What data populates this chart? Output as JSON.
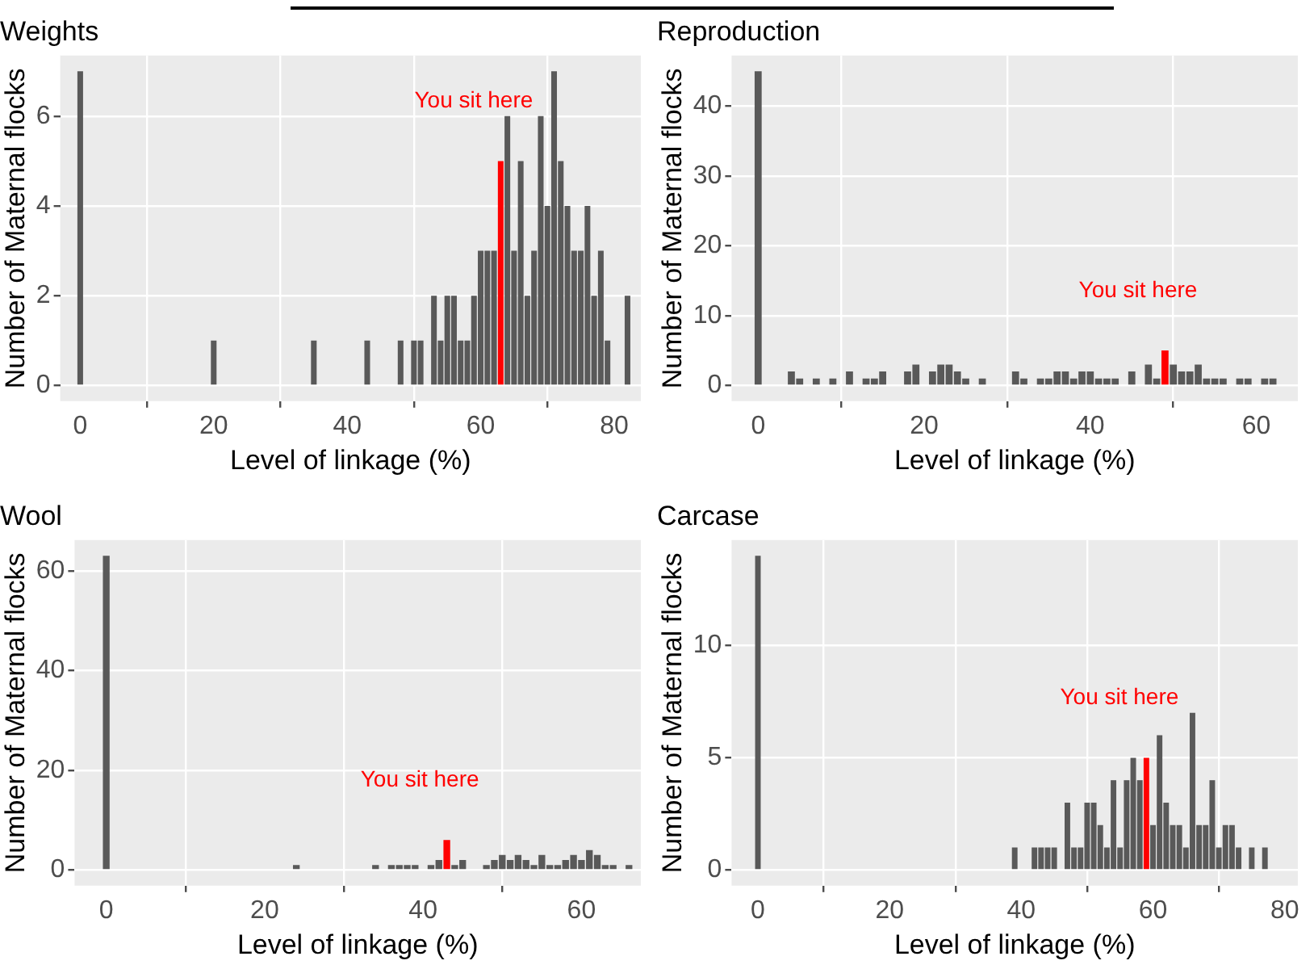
{
  "chart_data": [
    {
      "type": "histogram",
      "title": "Weights",
      "xlabel": "Level of linkage (%)",
      "ylabel": "Number of Maternal flocks",
      "grid": true,
      "bins": [
        -0.5,
        0.5,
        1.5,
        2.5,
        3.5,
        4.5,
        5.5,
        6.5,
        7.5,
        8.5,
        9.5,
        10.5,
        11.5,
        12.5,
        13.5,
        14.5,
        15.5,
        16.5,
        17.5,
        18.5,
        19.5,
        20.5,
        21.5,
        22.5,
        23.5,
        24.5,
        25.5,
        26.5,
        27.5,
        28.5,
        29.5,
        30.5,
        31.5,
        32.5,
        33.5,
        34.5,
        35.5,
        36.5,
        37.5,
        38.5,
        39.5,
        40.5,
        41.5,
        42.5,
        43.5,
        44.5,
        45.5,
        46.5,
        47.5,
        48.5,
        49.5,
        50.5,
        51.5,
        52.5,
        53.5,
        54.5,
        55.5,
        56.5,
        57.5,
        58.5,
        59.5,
        60.5,
        61.5,
        62.5,
        63.5,
        64.5,
        65.5,
        66.5,
        67.5,
        68.5,
        69.5,
        70.5,
        71.5,
        72.5,
        73.5,
        74.5,
        75.5,
        76.5,
        77.5,
        78.5,
        79.5,
        80.5,
        81.5,
        82.5
      ],
      "values": [
        7,
        0,
        0,
        0,
        0,
        0,
        0,
        0,
        0,
        0,
        0,
        0,
        0,
        0,
        0,
        0,
        0,
        0,
        0,
        0,
        1,
        0,
        0,
        0,
        0,
        0,
        0,
        0,
        0,
        0,
        0,
        0,
        0,
        0,
        0,
        1,
        0,
        0,
        0,
        0,
        0,
        0,
        0,
        1,
        0,
        0,
        0,
        0,
        1,
        0,
        1,
        1,
        0,
        2,
        1,
        2,
        2,
        1,
        1,
        2,
        3,
        3,
        3,
        5,
        6,
        3,
        5,
        2,
        3,
        6,
        4,
        7,
        5,
        4,
        3,
        3,
        4,
        2,
        3,
        1,
        0,
        0,
        2
      ],
      "colors": [
        "#595959",
        "#595959",
        "#595959",
        "#595959",
        "#595959",
        "#595959",
        "#595959",
        "#595959",
        "#595959",
        "#595959",
        "#595959",
        "#595959",
        "#595959",
        "#595959",
        "#595959",
        "#595959",
        "#595959",
        "#595959",
        "#595959",
        "#595959",
        "#595959",
        "#595959",
        "#595959",
        "#595959",
        "#595959",
        "#595959",
        "#595959",
        "#595959",
        "#595959",
        "#595959",
        "#595959",
        "#595959",
        "#595959",
        "#595959",
        "#595959",
        "#595959",
        "#595959",
        "#595959",
        "#595959",
        "#595959",
        "#595959",
        "#595959",
        "#595959",
        "#595959",
        "#595959",
        "#595959",
        "#595959",
        "#595959",
        "#595959",
        "#595959",
        "#595959",
        "#595959",
        "#595959",
        "#595959",
        "#595959",
        "#595959",
        "#595959",
        "#595959",
        "#595959",
        "#595959",
        "#595959",
        "#595959",
        "#595959",
        "#ff0000",
        "#595959",
        "#595959",
        "#595959",
        "#595959",
        "#595959",
        "#595959",
        "#595959",
        "#595959",
        "#595959",
        "#595959",
        "#595959",
        "#595959",
        "#595959",
        "#595959",
        "#595959",
        "#595959",
        "#595959",
        "#595959",
        "#595959"
      ],
      "xlim": [
        -3,
        84
      ],
      "xticks": [
        0,
        20,
        40,
        60,
        80
      ],
      "ylim": [
        -0.35,
        7.35
      ],
      "yticks": [
        0,
        2,
        4,
        6
      ],
      "annotations": [
        {
          "text": "You sit here",
          "x": 63,
          "y": 5
        }
      ]
    },
    {
      "type": "histogram",
      "title": "Reproduction",
      "xlabel": "Level of linkage (%)",
      "ylabel": "Number of Maternal flocks",
      "grid": true,
      "bins": [
        -0.5,
        0.5,
        1.5,
        2.5,
        3.5,
        4.5,
        5.5,
        6.5,
        7.5,
        8.5,
        9.5,
        10.5,
        11.5,
        12.5,
        13.5,
        14.5,
        15.5,
        16.5,
        17.5,
        18.5,
        19.5,
        20.5,
        21.5,
        22.5,
        23.5,
        24.5,
        25.5,
        26.5,
        27.5,
        28.5,
        29.5,
        30.5,
        31.5,
        32.5,
        33.5,
        34.5,
        35.5,
        36.5,
        37.5,
        38.5,
        39.5,
        40.5,
        41.5,
        42.5,
        43.5,
        44.5,
        45.5,
        46.5,
        47.5,
        48.5,
        49.5,
        50.5,
        51.5,
        52.5,
        53.5,
        54.5,
        55.5,
        56.5,
        57.5,
        58.5,
        59.5,
        60.5,
        61.5,
        62.5
      ],
      "values": [
        45,
        0,
        0,
        0,
        2,
        1,
        0,
        1,
        0,
        1,
        0,
        2,
        0,
        1,
        1,
        2,
        0,
        0,
        2,
        3,
        0,
        2,
        3,
        3,
        2,
        1,
        0,
        1,
        0,
        0,
        0,
        2,
        1,
        0,
        1,
        1,
        2,
        2,
        1,
        2,
        2,
        1,
        1,
        1,
        0,
        2,
        0,
        3,
        1,
        5,
        3,
        2,
        2,
        3,
        1,
        1,
        1,
        0,
        1,
        1,
        0,
        1,
        1
      ],
      "colors": [
        "#595959",
        "#595959",
        "#595959",
        "#595959",
        "#595959",
        "#595959",
        "#595959",
        "#595959",
        "#595959",
        "#595959",
        "#595959",
        "#595959",
        "#595959",
        "#595959",
        "#595959",
        "#595959",
        "#595959",
        "#595959",
        "#595959",
        "#595959",
        "#595959",
        "#595959",
        "#595959",
        "#595959",
        "#595959",
        "#595959",
        "#595959",
        "#595959",
        "#595959",
        "#595959",
        "#595959",
        "#595959",
        "#595959",
        "#595959",
        "#595959",
        "#595959",
        "#595959",
        "#595959",
        "#595959",
        "#595959",
        "#595959",
        "#595959",
        "#595959",
        "#595959",
        "#595959",
        "#595959",
        "#595959",
        "#595959",
        "#595959",
        "#ff0000",
        "#595959",
        "#595959",
        "#595959",
        "#595959",
        "#595959",
        "#595959",
        "#595959",
        "#595959",
        "#595959",
        "#595959",
        "#595959",
        "#595959",
        "#595959"
      ],
      "xlim": [
        -3.2,
        65
      ],
      "xticks": [
        0,
        20,
        40,
        60
      ],
      "ylim": [
        -2.25,
        47.25
      ],
      "yticks": [
        0,
        10,
        20,
        30,
        40
      ],
      "annotations": [
        {
          "text": "You sit here",
          "x": 49,
          "y": 5
        }
      ]
    },
    {
      "type": "histogram",
      "title": "Wool",
      "xlabel": "Level of linkage (%)",
      "ylabel": "Number of Maternal flocks",
      "grid": true,
      "bins": [
        -0.5,
        0.5,
        1.5,
        2.5,
        3.5,
        4.5,
        5.5,
        6.5,
        7.5,
        8.5,
        9.5,
        10.5,
        11.5,
        12.5,
        13.5,
        14.5,
        15.5,
        16.5,
        17.5,
        18.5,
        19.5,
        20.5,
        21.5,
        22.5,
        23.5,
        24.5,
        25.5,
        26.5,
        27.5,
        28.5,
        29.5,
        30.5,
        31.5,
        32.5,
        33.5,
        34.5,
        35.5,
        36.5,
        37.5,
        38.5,
        39.5,
        40.5,
        41.5,
        42.5,
        43.5,
        44.5,
        45.5,
        46.5,
        47.5,
        48.5,
        49.5,
        50.5,
        51.5,
        52.5,
        53.5,
        54.5,
        55.5,
        56.5,
        57.5,
        58.5,
        59.5,
        60.5,
        61.5,
        62.5,
        63.5,
        64.5,
        65.5,
        66.5
      ],
      "values": [
        63,
        0,
        0,
        0,
        0,
        0,
        0,
        0,
        0,
        0,
        0,
        0,
        0,
        0,
        0,
        0,
        0,
        0,
        0,
        0,
        0,
        0,
        0,
        0,
        1,
        0,
        0,
        0,
        0,
        0,
        0,
        0,
        0,
        0,
        1,
        0,
        1,
        1,
        1,
        1,
        0,
        1,
        2,
        6,
        1,
        2,
        0,
        0,
        1,
        2,
        3,
        2,
        3,
        2,
        1,
        3,
        1,
        1,
        2,
        3,
        2,
        4,
        3,
        1,
        1,
        0,
        1
      ],
      "colors": [
        "#595959",
        "#595959",
        "#595959",
        "#595959",
        "#595959",
        "#595959",
        "#595959",
        "#595959",
        "#595959",
        "#595959",
        "#595959",
        "#595959",
        "#595959",
        "#595959",
        "#595959",
        "#595959",
        "#595959",
        "#595959",
        "#595959",
        "#595959",
        "#595959",
        "#595959",
        "#595959",
        "#595959",
        "#595959",
        "#595959",
        "#595959",
        "#595959",
        "#595959",
        "#595959",
        "#595959",
        "#595959",
        "#595959",
        "#595959",
        "#595959",
        "#595959",
        "#595959",
        "#595959",
        "#595959",
        "#595959",
        "#595959",
        "#595959",
        "#595959",
        "#ff0000",
        "#595959",
        "#595959",
        "#595959",
        "#595959",
        "#595959",
        "#595959",
        "#595959",
        "#595959",
        "#595959",
        "#595959",
        "#595959",
        "#595959",
        "#595959",
        "#595959",
        "#595959",
        "#595959",
        "#595959",
        "#595959",
        "#595959",
        "#595959",
        "#595959",
        "#595959",
        "#595959"
      ],
      "xlim": [
        -4,
        67.5
      ],
      "xticks": [
        0,
        20,
        40,
        60
      ],
      "ylim": [
        -3.15,
        66.15
      ],
      "yticks": [
        0,
        20,
        40,
        60
      ],
      "annotations": [
        {
          "text": "You sit here",
          "x": 43,
          "y": 6
        }
      ]
    },
    {
      "type": "histogram",
      "title": "Carcase",
      "xlabel": "Level of linkage (%)",
      "ylabel": "Number of Maternal flocks",
      "grid": true,
      "bins": [
        -0.5,
        0.5,
        1.5,
        2.5,
        3.5,
        4.5,
        5.5,
        6.5,
        7.5,
        8.5,
        9.5,
        10.5,
        11.5,
        12.5,
        13.5,
        14.5,
        15.5,
        16.5,
        17.5,
        18.5,
        19.5,
        20.5,
        21.5,
        22.5,
        23.5,
        24.5,
        25.5,
        26.5,
        27.5,
        28.5,
        29.5,
        30.5,
        31.5,
        32.5,
        33.5,
        34.5,
        35.5,
        36.5,
        37.5,
        38.5,
        39.5,
        40.5,
        41.5,
        42.5,
        43.5,
        44.5,
        45.5,
        46.5,
        47.5,
        48.5,
        49.5,
        50.5,
        51.5,
        52.5,
        53.5,
        54.5,
        55.5,
        56.5,
        57.5,
        58.5,
        59.5,
        60.5,
        61.5,
        62.5,
        63.5,
        64.5,
        65.5,
        66.5,
        67.5,
        68.5,
        69.5,
        70.5,
        71.5,
        72.5,
        73.5,
        74.5,
        75.5,
        76.5,
        77.5
      ],
      "values": [
        14,
        0,
        0,
        0,
        0,
        0,
        0,
        0,
        0,
        0,
        0,
        0,
        0,
        0,
        0,
        0,
        0,
        0,
        0,
        0,
        0,
        0,
        0,
        0,
        0,
        0,
        0,
        0,
        0,
        0,
        0,
        0,
        0,
        0,
        0,
        0,
        0,
        0,
        0,
        1,
        0,
        0,
        1,
        1,
        1,
        1,
        0,
        3,
        1,
        1,
        3,
        3,
        2,
        1,
        4,
        1,
        4,
        5,
        4,
        5,
        2,
        6,
        3,
        2,
        2,
        1,
        7,
        2,
        2,
        4,
        1,
        2,
        2,
        1,
        0,
        1,
        0,
        1
      ],
      "colors": [
        "#595959",
        "#595959",
        "#595959",
        "#595959",
        "#595959",
        "#595959",
        "#595959",
        "#595959",
        "#595959",
        "#595959",
        "#595959",
        "#595959",
        "#595959",
        "#595959",
        "#595959",
        "#595959",
        "#595959",
        "#595959",
        "#595959",
        "#595959",
        "#595959",
        "#595959",
        "#595959",
        "#595959",
        "#595959",
        "#595959",
        "#595959",
        "#595959",
        "#595959",
        "#595959",
        "#595959",
        "#595959",
        "#595959",
        "#595959",
        "#595959",
        "#595959",
        "#595959",
        "#595959",
        "#595959",
        "#595959",
        "#595959",
        "#595959",
        "#595959",
        "#595959",
        "#595959",
        "#595959",
        "#595959",
        "#595959",
        "#595959",
        "#595959",
        "#595959",
        "#595959",
        "#595959",
        "#595959",
        "#595959",
        "#595959",
        "#595959",
        "#595959",
        "#595959",
        "#ff0000",
        "#595959",
        "#595959",
        "#595959",
        "#595959",
        "#595959",
        "#595959",
        "#595959",
        "#595959",
        "#595959",
        "#595959",
        "#595959",
        "#595959",
        "#595959",
        "#595959",
        "#595959",
        "#595959",
        "#595959",
        "#595959"
      ],
      "xlim": [
        -4,
        82
      ],
      "xticks": [
        0,
        20,
        40,
        60,
        80
      ],
      "ylim": [
        -0.7,
        14.7
      ],
      "yticks": [
        0,
        5,
        10
      ],
      "annotations": [
        {
          "text": "You sit here",
          "x": 59,
          "y": 5
        }
      ]
    }
  ]
}
